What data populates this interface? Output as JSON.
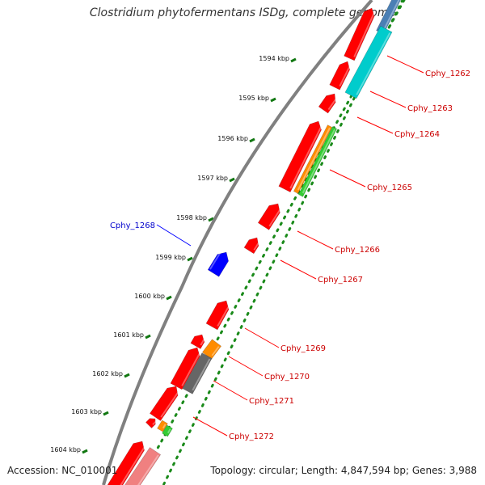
{
  "title": "Clostridium phytofermentans ISDg, complete genome",
  "accession_label": "Accession: NC_010001",
  "summary_label": "Topology: circular; Length: 4,847,594 bp; Genes: 3,988",
  "tick_labels": [
    "1594 kbp",
    "1595 kbp",
    "1596 kbp",
    "1597 kbp",
    "1598 kbp",
    "1599 kbp",
    "1600 kbp",
    "1601 kbp",
    "1602 kbp",
    "1603 kbp",
    "1604 kbp"
  ],
  "colors": {
    "forward_cds": "#ff0000",
    "reverse_cds": "#0000ff",
    "cyan_feature": "#00cccc",
    "orange_feature": "#ff8c00",
    "green_feature": "#33cc33",
    "gray_feature": "#666666",
    "label_forward": "#cc0000",
    "label_reverse": "#0000cc",
    "backbone": "#808080",
    "dotted_ring": "#1a8a1a"
  },
  "gene_labels": [
    {
      "text": "Cphy_1262",
      "strand": "forward"
    },
    {
      "text": "Cphy_1263",
      "strand": "forward"
    },
    {
      "text": "Cphy_1264",
      "strand": "forward"
    },
    {
      "text": "Cphy_1265",
      "strand": "forward"
    },
    {
      "text": "Cphy_1266",
      "strand": "forward"
    },
    {
      "text": "Cphy_1267",
      "strand": "forward"
    },
    {
      "text": "Cphy_1268",
      "strand": "reverse"
    },
    {
      "text": "Cphy_1269",
      "strand": "forward"
    },
    {
      "text": "Cphy_1270",
      "strand": "forward"
    },
    {
      "text": "Cphy_1271",
      "strand": "forward"
    },
    {
      "text": "Cphy_1272",
      "strand": "forward"
    }
  ]
}
